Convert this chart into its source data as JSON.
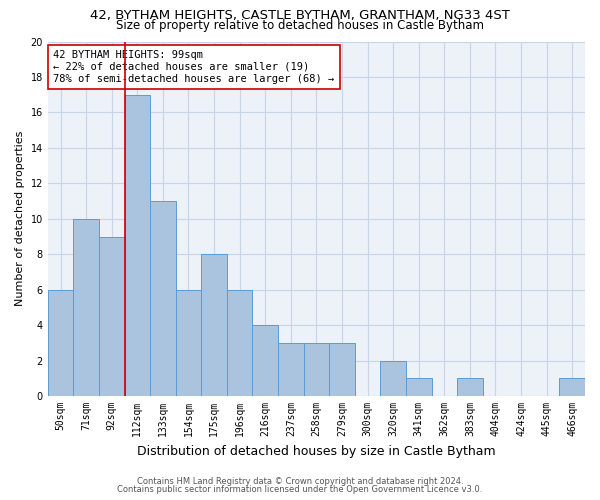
{
  "title": "42, BYTHAM HEIGHTS, CASTLE BYTHAM, GRANTHAM, NG33 4ST",
  "subtitle": "Size of property relative to detached houses in Castle Bytham",
  "xlabel": "Distribution of detached houses by size in Castle Bytham",
  "ylabel": "Number of detached properties",
  "footer_line1": "Contains HM Land Registry data © Crown copyright and database right 2024.",
  "footer_line2": "Contains public sector information licensed under the Open Government Licence v3.0.",
  "bin_labels": [
    "50sqm",
    "71sqm",
    "92sqm",
    "112sqm",
    "133sqm",
    "154sqm",
    "175sqm",
    "196sqm",
    "216sqm",
    "237sqm",
    "258sqm",
    "279sqm",
    "300sqm",
    "320sqm",
    "341sqm",
    "362sqm",
    "383sqm",
    "404sqm",
    "424sqm",
    "445sqm",
    "466sqm"
  ],
  "values": [
    6,
    10,
    9,
    17,
    11,
    6,
    8,
    6,
    4,
    3,
    3,
    3,
    0,
    2,
    1,
    0,
    1,
    0,
    0,
    0,
    1
  ],
  "bar_color": "#aac4e0",
  "bar_edge_color": "#5b9bd5",
  "bar_width": 1.0,
  "property_bin_index": 2,
  "red_line_x": 2.5,
  "red_line_color": "#cc0000",
  "annotation_text": "42 BYTHAM HEIGHTS: 99sqm\n← 22% of detached houses are smaller (19)\n78% of semi-detached houses are larger (68) →",
  "annotation_box_color": "#cc0000",
  "ylim": [
    0,
    20
  ],
  "yticks": [
    0,
    2,
    4,
    6,
    8,
    10,
    12,
    14,
    16,
    18,
    20
  ],
  "grid_color": "#c8d4e8",
  "bg_color": "#edf1f8",
  "title_fontsize": 9.5,
  "subtitle_fontsize": 8.5,
  "xlabel_fontsize": 9,
  "ylabel_fontsize": 8,
  "tick_fontsize": 7,
  "annotation_fontsize": 7.5,
  "footer_fontsize": 6
}
